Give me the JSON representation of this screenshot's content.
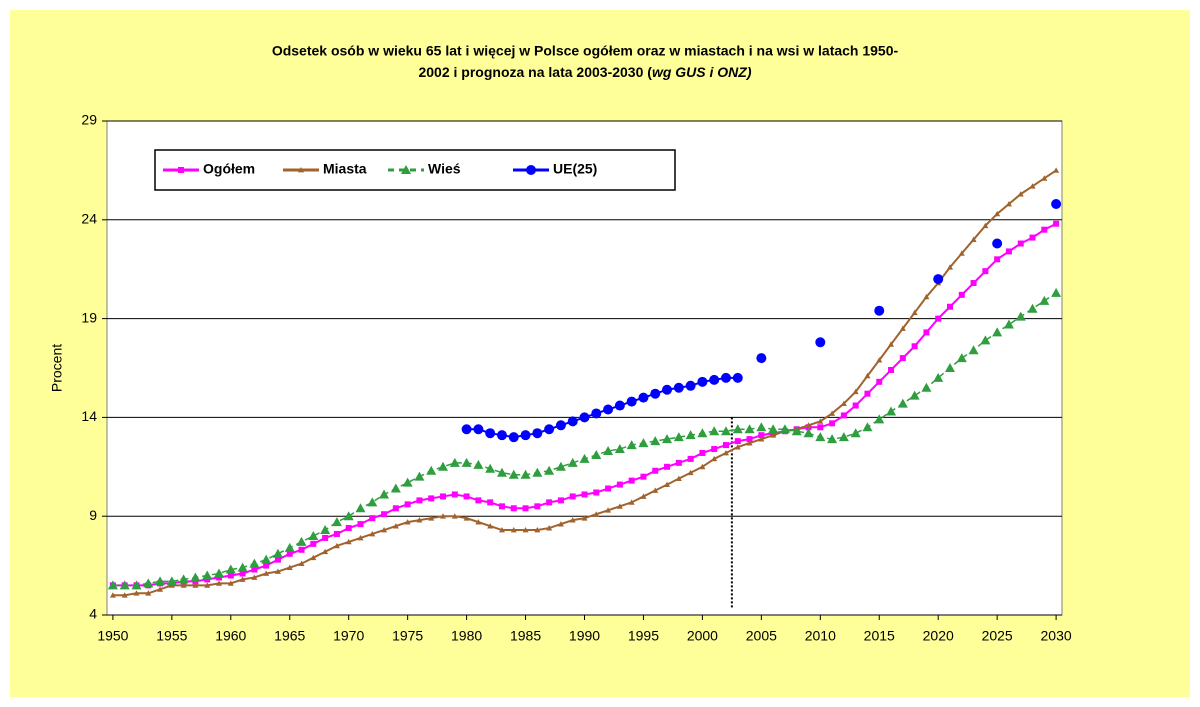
{
  "chart_data": {
    "type": "line",
    "title_lines": [
      "Odsetek osób w wieku 65 lat i więcej w Polsce ogółem oraz w miastach i na wsi w latach 1950-",
      "2002 i prognoza na lata 2003-2030 ("
    ],
    "title_italic": "wg GUS i ONZ)",
    "ylabel": "Procent",
    "x": [
      1950,
      1951,
      1952,
      1953,
      1954,
      1955,
      1956,
      1957,
      1958,
      1959,
      1960,
      1961,
      1962,
      1963,
      1964,
      1965,
      1966,
      1967,
      1968,
      1969,
      1970,
      1971,
      1972,
      1973,
      1974,
      1975,
      1976,
      1977,
      1978,
      1979,
      1980,
      1981,
      1982,
      1983,
      1984,
      1985,
      1986,
      1987,
      1988,
      1989,
      1990,
      1991,
      1992,
      1993,
      1994,
      1995,
      1996,
      1997,
      1998,
      1999,
      2000,
      2001,
      2002,
      2003,
      2004,
      2005,
      2006,
      2007,
      2008,
      2009,
      2010,
      2011,
      2012,
      2013,
      2014,
      2015,
      2016,
      2017,
      2018,
      2019,
      2020,
      2021,
      2022,
      2023,
      2024,
      2025,
      2026,
      2027,
      2028,
      2029,
      2030
    ],
    "series": [
      {
        "name": "Ogółem",
        "color": "#ff00ff",
        "marker": "square",
        "line": "solid",
        "values": [
          5.5,
          5.5,
          5.5,
          5.5,
          5.6,
          5.6,
          5.7,
          5.7,
          5.8,
          5.9,
          6.0,
          6.1,
          6.3,
          6.5,
          6.8,
          7.1,
          7.3,
          7.6,
          7.9,
          8.1,
          8.4,
          8.6,
          8.9,
          9.1,
          9.4,
          9.6,
          9.8,
          9.9,
          10.0,
          10.1,
          10.0,
          9.8,
          9.7,
          9.5,
          9.4,
          9.4,
          9.5,
          9.7,
          9.8,
          10.0,
          10.1,
          10.2,
          10.4,
          10.6,
          10.8,
          11.0,
          11.3,
          11.5,
          11.7,
          11.9,
          12.2,
          12.4,
          12.6,
          12.8,
          12.9,
          13.1,
          13.2,
          13.3,
          13.4,
          13.5,
          13.5,
          13.7,
          14.1,
          14.6,
          15.2,
          15.8,
          16.4,
          17.0,
          17.6,
          18.3,
          19.0,
          19.6,
          20.2,
          20.8,
          21.4,
          22.0,
          22.4,
          22.8,
          23.1,
          23.5,
          23.8
        ]
      },
      {
        "name": "Miasta",
        "color": "#a0632d",
        "marker": "small-triangle",
        "line": "solid",
        "values": [
          5.0,
          5.0,
          5.1,
          5.1,
          5.3,
          5.5,
          5.5,
          5.5,
          5.5,
          5.6,
          5.6,
          5.8,
          5.9,
          6.1,
          6.2,
          6.4,
          6.6,
          6.9,
          7.2,
          7.5,
          7.7,
          7.9,
          8.1,
          8.3,
          8.5,
          8.7,
          8.8,
          8.9,
          9.0,
          9.0,
          8.9,
          8.7,
          8.5,
          8.3,
          8.3,
          8.3,
          8.3,
          8.4,
          8.6,
          8.8,
          8.9,
          9.1,
          9.3,
          9.5,
          9.7,
          10.0,
          10.3,
          10.6,
          10.9,
          11.2,
          11.5,
          11.9,
          12.2,
          12.5,
          12.7,
          12.9,
          13.1,
          13.3,
          13.4,
          13.6,
          13.8,
          14.2,
          14.7,
          15.3,
          16.1,
          16.9,
          17.7,
          18.5,
          19.3,
          20.1,
          20.8,
          21.6,
          22.3,
          23.0,
          23.7,
          24.3,
          24.8,
          25.3,
          25.7,
          26.1,
          26.5
        ]
      },
      {
        "name": "Wieś",
        "color": "#2e9e3e",
        "marker": "triangle",
        "line": "dashed",
        "values": [
          5.5,
          5.5,
          5.5,
          5.6,
          5.7,
          5.7,
          5.8,
          5.9,
          6.0,
          6.1,
          6.3,
          6.4,
          6.6,
          6.8,
          7.1,
          7.4,
          7.7,
          8.0,
          8.3,
          8.7,
          9.0,
          9.4,
          9.7,
          10.1,
          10.4,
          10.7,
          11.0,
          11.3,
          11.5,
          11.7,
          11.7,
          11.6,
          11.4,
          11.2,
          11.1,
          11.1,
          11.2,
          11.3,
          11.5,
          11.7,
          11.9,
          12.1,
          12.3,
          12.4,
          12.6,
          12.7,
          12.8,
          12.9,
          13.0,
          13.1,
          13.2,
          13.3,
          13.3,
          13.4,
          13.4,
          13.5,
          13.4,
          13.4,
          13.3,
          13.2,
          13.0,
          12.9,
          13.0,
          13.2,
          13.5,
          13.9,
          14.3,
          14.7,
          15.1,
          15.5,
          16.0,
          16.5,
          17.0,
          17.4,
          17.9,
          18.3,
          18.7,
          19.1,
          19.5,
          19.9,
          20.3
        ]
      },
      {
        "name": "UE(25)",
        "color": "#0000ff",
        "marker": "circle",
        "line": "solid",
        "values": [
          null,
          null,
          null,
          null,
          null,
          null,
          null,
          null,
          null,
          null,
          null,
          null,
          null,
          null,
          null,
          null,
          null,
          null,
          null,
          null,
          null,
          null,
          null,
          null,
          null,
          null,
          null,
          null,
          null,
          null,
          13.4,
          13.4,
          13.2,
          13.1,
          13.0,
          13.1,
          13.2,
          13.4,
          13.6,
          13.8,
          14.0,
          14.2,
          14.4,
          14.6,
          14.8,
          15.0,
          15.2,
          15.4,
          15.5,
          15.6,
          15.8,
          15.9,
          16.0,
          16.0,
          null,
          17.0,
          null,
          null,
          null,
          null,
          17.8,
          null,
          null,
          null,
          null,
          19.4,
          null,
          null,
          null,
          null,
          21.0,
          null,
          null,
          null,
          null,
          22.8,
          null,
          null,
          null,
          null,
          24.8
        ]
      }
    ],
    "xlim": [
      1949.5,
      2030.5
    ],
    "xticks": [
      1950,
      1955,
      1960,
      1965,
      1970,
      1975,
      1980,
      1985,
      1990,
      1995,
      2000,
      2005,
      2010,
      2015,
      2020,
      2025,
      2030
    ],
    "ylim": [
      4,
      29
    ],
    "yticks": [
      4,
      9,
      14,
      19,
      24,
      29
    ],
    "grid": true,
    "vertical_line_x": 2002.5,
    "legend": "top-left"
  }
}
